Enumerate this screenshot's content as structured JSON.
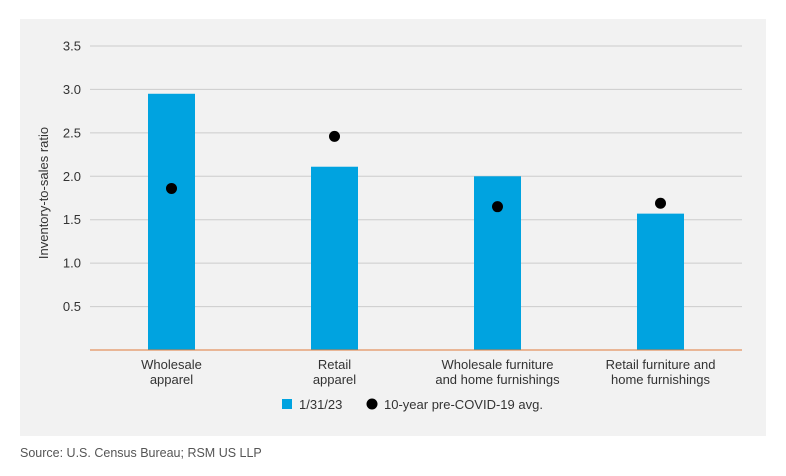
{
  "chart_data": {
    "type": "bar",
    "categories": [
      [
        "Wholesale",
        "apparel"
      ],
      [
        "Retail",
        "apparel"
      ],
      [
        "Wholesale furniture",
        "and home furnishings"
      ],
      [
        "Retail furniture and",
        "home furnishings"
      ]
    ],
    "series": [
      {
        "name": "1/31/23",
        "kind": "bar",
        "color": "#00a3e0",
        "values": [
          2.95,
          2.11,
          2.0,
          1.57
        ]
      },
      {
        "name": "10-year pre-COVID-19 avg.",
        "kind": "dot",
        "color": "#000000",
        "values": [
          1.86,
          2.46,
          1.65,
          1.69
        ]
      }
    ],
    "ylabel": "Inventory-to-sales ratio",
    "ylim": [
      0,
      3.5
    ],
    "yticks": [
      "0.5",
      "1.0",
      "1.5",
      "2.0",
      "2.5",
      "3.0",
      "3.5"
    ],
    "grid": true,
    "legend_position": "bottom-center",
    "axis_color": "#e07b39",
    "grid_color": "#cccccc"
  },
  "source": "Source: U.S. Census Bureau; RSM US LLP"
}
